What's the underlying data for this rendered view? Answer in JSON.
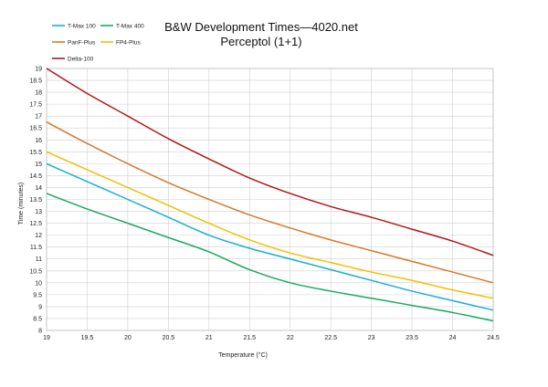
{
  "chart_data": {
    "type": "line",
    "title": "B&W Development Times—4020.net",
    "subtitle": "Perceptol (1+1)",
    "xlabel": "Temperature    (°C)",
    "ylabel": "Time    (minutes)",
    "xlim": [
      19,
      24.5
    ],
    "ylim": [
      8,
      19
    ],
    "x_ticks": [
      "19",
      "19.5",
      "20",
      "20.5",
      "21",
      "21.5",
      "22",
      "22.5",
      "23",
      "23.5",
      "24",
      "24.5"
    ],
    "y_ticks": [
      "8",
      "8.5",
      "9",
      "9.5",
      "10",
      "10.5",
      "11",
      "11.5",
      "12",
      "12.5",
      "13",
      "13.5",
      "14",
      "14.5",
      "15",
      "15.5",
      "16",
      "16.5",
      "17",
      "17.5",
      "18",
      "18.5",
      "19"
    ],
    "grid": true,
    "legend_position": "top-left",
    "series": [
      {
        "name": "T-Max 100",
        "color": "#1aaed8",
        "x": [
          19,
          19.5,
          20,
          20.5,
          21,
          21.5,
          22,
          22.5,
          23,
          23.5,
          24,
          24.5
        ],
        "values": [
          15.0,
          14.25,
          13.5,
          12.75,
          12.0,
          11.45,
          11.0,
          10.55,
          10.1,
          9.65,
          9.25,
          8.85
        ]
      },
      {
        "name": "T-Max 400",
        "color": "#1aa860",
        "x": [
          19,
          19.5,
          20,
          20.5,
          21,
          21.5,
          22,
          22.5,
          23,
          23.5,
          24,
          24.5
        ],
        "values": [
          13.75,
          13.1,
          12.5,
          11.9,
          11.3,
          10.55,
          10.0,
          9.65,
          9.35,
          9.05,
          8.75,
          8.4
        ]
      },
      {
        "name": "PanF-Plus",
        "color": "#d8782a",
        "x": [
          19,
          19.5,
          20,
          20.5,
          21,
          21.5,
          22,
          22.5,
          23,
          23.5,
          24,
          24.5
        ],
        "values": [
          16.75,
          15.85,
          15.0,
          14.2,
          13.5,
          12.85,
          12.3,
          11.8,
          11.35,
          10.9,
          10.45,
          10.0
        ]
      },
      {
        "name": "FP4-Plus",
        "color": "#f0c000",
        "x": [
          19,
          19.5,
          20,
          20.5,
          21,
          21.5,
          22,
          22.5,
          23,
          23.5,
          24,
          24.5
        ],
        "values": [
          15.5,
          14.75,
          14.0,
          13.25,
          12.5,
          11.8,
          11.25,
          10.85,
          10.45,
          10.1,
          9.7,
          9.35
        ]
      },
      {
        "name": "Delta-100",
        "color": "#b01818",
        "x": [
          19,
          19.5,
          20,
          20.5,
          21,
          21.5,
          22,
          22.5,
          23,
          23.5,
          24,
          24.5
        ],
        "values": [
          19.0,
          17.95,
          17.0,
          16.05,
          15.2,
          14.4,
          13.75,
          13.2,
          12.75,
          12.25,
          11.75,
          11.15
        ]
      }
    ]
  }
}
